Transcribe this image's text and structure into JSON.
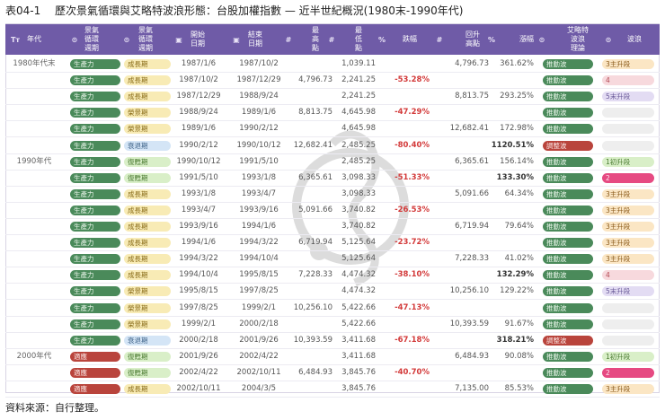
{
  "title": "表04-1　 歷次景氣循環與艾略特波浪形態：台股加權指數 — 近半世紀概況(1980末-1990年代)",
  "source": "資料來源：自行整理。",
  "headers": {
    "era": "年代",
    "cycle": "景氣\n循環\n週期",
    "phase": "景氣\n循環\n週期",
    "start": "開始\n日期",
    "end": "結束\n日期",
    "high": "最\n高\n點",
    "low": "最\n低\n點",
    "drop": "跌幅",
    "rebound": "回升\n高點",
    "rise": "漲幅",
    "elliott": "艾略特\n波浪\n理論",
    "wave": "波浪"
  },
  "header_icons": {
    "era": "Tт",
    "cycle": "⊙",
    "phase": "⊙",
    "start": "▣",
    "end": "▣",
    "high": "#",
    "low": "#",
    "drop": "%",
    "rebound": "#",
    "rise": "%",
    "elliott": "⊙",
    "wave": "⊙"
  },
  "rows": [
    {
      "era": "1980年代末",
      "cycle": "生產力",
      "phase": "成長期",
      "start": "1987/1/6",
      "end": "1987/10/2",
      "high": "",
      "low": "1,039.11",
      "drop": "",
      "rebound": "4,796.73",
      "rise": "361.62%",
      "elliott": "推動波",
      "wave": "3主升段"
    },
    {
      "era": "",
      "cycle": "生產力",
      "phase": "成長期",
      "start": "1987/10/2",
      "end": "1987/12/29",
      "high": "4,796.73",
      "low": "2,241.25",
      "drop": "-53.28%",
      "rebound": "",
      "rise": "",
      "elliott": "推動波",
      "wave": "4"
    },
    {
      "era": "",
      "cycle": "生產力",
      "phase": "成長期",
      "start": "1987/12/29",
      "end": "1988/9/24",
      "high": "",
      "low": "2,241.25",
      "drop": "",
      "rebound": "8,813.75",
      "rise": "293.25%",
      "elliott": "推動波",
      "wave": "5末升段"
    },
    {
      "era": "",
      "cycle": "生產力",
      "phase": "榮景期",
      "start": "1988/9/24",
      "end": "1989/1/6",
      "high": "8,813.75",
      "low": "4,645.98",
      "drop": "-47.29%",
      "rebound": "",
      "rise": "",
      "elliott": "推動波",
      "wave": ""
    },
    {
      "era": "",
      "cycle": "生產力",
      "phase": "榮景期",
      "start": "1989/1/6",
      "end": "1990/2/12",
      "high": "",
      "low": "4,645.98",
      "drop": "",
      "rebound": "12,682.41",
      "rise": "172.98%",
      "elliott": "推動波",
      "wave": ""
    },
    {
      "era": "",
      "cycle": "生產力",
      "phase": "衰退期",
      "start": "1990/2/12",
      "end": "1990/10/12",
      "high": "12,682.41",
      "low": "2,485.25",
      "drop": "-80.40%",
      "rebound": "",
      "rise": "1120.51%",
      "elliott": "調整波",
      "wave": ""
    },
    {
      "era": "1990年代",
      "cycle": "生產力",
      "phase": "復甦期",
      "start": "1990/10/12",
      "end": "1991/5/10",
      "high": "",
      "low": "2,485.25",
      "drop": "",
      "rebound": "6,365.61",
      "rise": "156.14%",
      "elliott": "推動波",
      "wave": "1初升段"
    },
    {
      "era": "",
      "cycle": "生產力",
      "phase": "復甦期",
      "start": "1991/5/10",
      "end": "1993/1/8",
      "high": "6,365.61",
      "low": "3,098.33",
      "drop": "-51.33%",
      "rebound": "",
      "rise": "133.30%",
      "elliott": "推動波",
      "wave": "2"
    },
    {
      "era": "",
      "cycle": "生產力",
      "phase": "成長期",
      "start": "1993/1/8",
      "end": "1993/4/7",
      "high": "",
      "low": "3,098.33",
      "drop": "",
      "rebound": "5,091.66",
      "rise": "64.34%",
      "elliott": "推動波",
      "wave": "3主升段"
    },
    {
      "era": "",
      "cycle": "生產力",
      "phase": "成長期",
      "start": "1993/4/7",
      "end": "1993/9/16",
      "high": "5,091.66",
      "low": "3,740.82",
      "drop": "-26.53%",
      "rebound": "",
      "rise": "",
      "elliott": "推動波",
      "wave": "3主升段"
    },
    {
      "era": "",
      "cycle": "生產力",
      "phase": "成長期",
      "start": "1993/9/16",
      "end": "1994/1/6",
      "high": "",
      "low": "3,740.82",
      "drop": "",
      "rebound": "6,719.94",
      "rise": "79.64%",
      "elliott": "推動波",
      "wave": "3主升段"
    },
    {
      "era": "",
      "cycle": "生產力",
      "phase": "成長期",
      "start": "1994/1/6",
      "end": "1994/3/22",
      "high": "6,719.94",
      "low": "5,125.64",
      "drop": "-23.72%",
      "rebound": "",
      "rise": "",
      "elliott": "推動波",
      "wave": "3主升段"
    },
    {
      "era": "",
      "cycle": "生產力",
      "phase": "成長期",
      "start": "1994/3/22",
      "end": "1994/10/4",
      "high": "",
      "low": "5,125.64",
      "drop": "",
      "rebound": "7,228.33",
      "rise": "41.02%",
      "elliott": "推動波",
      "wave": "3主升段"
    },
    {
      "era": "",
      "cycle": "生產力",
      "phase": "成長期",
      "start": "1994/10/4",
      "end": "1995/8/15",
      "high": "7,228.33",
      "low": "4,474.32",
      "drop": "-38.10%",
      "rebound": "",
      "rise": "132.29%",
      "elliott": "推動波",
      "wave": "4"
    },
    {
      "era": "",
      "cycle": "生產力",
      "phase": "榮景期",
      "start": "1995/8/15",
      "end": "1997/8/25",
      "high": "",
      "low": "4,474.32",
      "drop": "",
      "rebound": "10,256.10",
      "rise": "129.22%",
      "elliott": "推動波",
      "wave": "5末升段"
    },
    {
      "era": "",
      "cycle": "生產力",
      "phase": "榮景期",
      "start": "1997/8/25",
      "end": "1999/2/1",
      "high": "10,256.10",
      "low": "5,422.66",
      "drop": "-47.13%",
      "rebound": "",
      "rise": "",
      "elliott": "推動波",
      "wave": ""
    },
    {
      "era": "",
      "cycle": "生產力",
      "phase": "榮景期",
      "start": "1999/2/1",
      "end": "2000/2/18",
      "high": "",
      "low": "5,422.66",
      "drop": "",
      "rebound": "10,393.59",
      "rise": "91.67%",
      "elliott": "推動波",
      "wave": ""
    },
    {
      "era": "",
      "cycle": "生產力",
      "phase": "衰退期",
      "start": "2000/2/18",
      "end": "2001/9/26",
      "high": "10,393.59",
      "low": "3,411.68",
      "drop": "-67.18%",
      "rebound": "",
      "rise": "318.21%",
      "elliott": "調整波",
      "wave": ""
    },
    {
      "era": "2000年代",
      "cycle": "適應",
      "phase": "復甦期",
      "start": "2001/9/26",
      "end": "2002/4/22",
      "high": "",
      "low": "3,411.68",
      "drop": "",
      "rebound": "6,484.93",
      "rise": "90.08%",
      "elliott": "推動波",
      "wave": "1初升段"
    },
    {
      "era": "",
      "cycle": "適應",
      "phase": "復甦期",
      "start": "2002/4/22",
      "end": "2002/10/11",
      "high": "6,484.93",
      "low": "3,845.76",
      "drop": "-40.70%",
      "rebound": "",
      "rise": "",
      "elliott": "推動波",
      "wave": "2"
    },
    {
      "era": "",
      "cycle": "適應",
      "phase": "成長期",
      "start": "2002/10/11",
      "end": "2004/3/5",
      "high": "",
      "low": "3,845.76",
      "drop": "",
      "rebound": "7,135.00",
      "rise": "85.53%",
      "elliott": "推動波",
      "wave": "3主升段"
    }
  ],
  "colors": {
    "header": "#6f5ba7",
    "drop_red": "#d33a3a"
  }
}
